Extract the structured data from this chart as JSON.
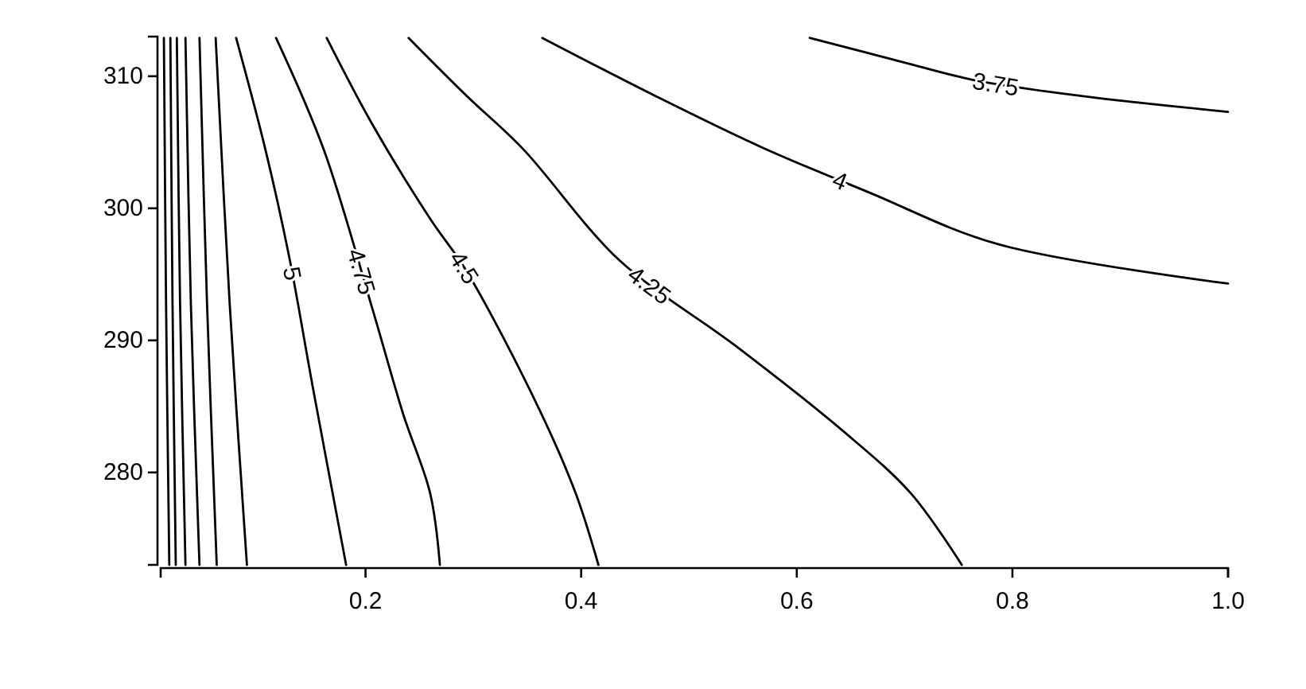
{
  "chart_data": {
    "type": "line",
    "xlim": [
      0.01,
      1
    ],
    "ylim": [
      273,
      313
    ],
    "xticks": [
      0.2,
      0.4,
      0.6,
      0.8,
      {
        "value": 1,
        "label": "1.0"
      }
    ],
    "yticks": [
      280,
      290,
      300,
      310
    ],
    "series": [
      {
        "name": "3.75",
        "color": "#000000",
        "x": [
          0.612,
          0.697,
          0.765,
          0.864,
          1.0
        ],
        "values": [
          312.9,
          311.1,
          309.7,
          308.5,
          307.3
        ]
      },
      {
        "name": "4",
        "color": "#000000",
        "x": [
          0.364,
          0.469,
          0.568,
          0.667,
          0.786,
          1.0
        ],
        "values": [
          312.9,
          308.5,
          304.6,
          301.2,
          297.3,
          294.3
        ]
      },
      {
        "name": "4.25",
        "color": "#000000",
        "x": [
          0.24,
          0.294,
          0.346,
          0.435,
          0.543,
          0.642,
          0.706,
          0.753
        ],
        "values": [
          312.9,
          308.5,
          304.5,
          296.1,
          289.6,
          283.2,
          278.4,
          273.0
        ]
      },
      {
        "name": "4.5",
        "color": "#000000",
        "x": [
          0.164,
          0.206,
          0.26,
          0.294,
          0.361,
          0.395,
          0.416
        ],
        "values": [
          312.9,
          306.4,
          299.2,
          295.2,
          284.8,
          278.4,
          273.0
        ]
      },
      {
        "name": "4.75",
        "color": "#000000",
        "x": [
          0.117,
          0.161,
          0.206,
          0.235,
          0.26,
          0.269
        ],
        "values": [
          312.9,
          304.5,
          292.5,
          284.4,
          278.4,
          273.0
        ]
      },
      {
        "name": "5",
        "color": "#000000",
        "x": [
          0.08,
          0.107,
          0.129,
          0.151,
          0.182
        ],
        "values": [
          312.9,
          304.5,
          296.4,
          286.5,
          273.0
        ]
      },
      {
        "color": "#000000",
        "x": [
          0.061,
          0.074,
          0.09
        ],
        "values": [
          312.9,
          292.8,
          273.0
        ]
      },
      {
        "color": "#000000",
        "x": [
          0.046,
          0.053,
          0.062
        ],
        "values": [
          312.9,
          292.8,
          273.0
        ]
      },
      {
        "color": "#000000",
        "x": [
          0.033,
          0.038,
          0.046
        ],
        "values": [
          312.9,
          292.8,
          273.0
        ]
      },
      {
        "color": "#000000",
        "x": [
          0.025,
          0.028,
          0.033
        ],
        "values": [
          312.9,
          292.8,
          273.0
        ]
      },
      {
        "color": "#000000",
        "x": [
          0.019,
          0.021,
          0.024
        ],
        "values": [
          312.9,
          292.8,
          273.0
        ]
      },
      {
        "color": "#000000",
        "x": [
          0.013,
          0.015,
          0.018
        ],
        "values": [
          312.9,
          292.8,
          273.0
        ]
      }
    ],
    "legend": false
  }
}
